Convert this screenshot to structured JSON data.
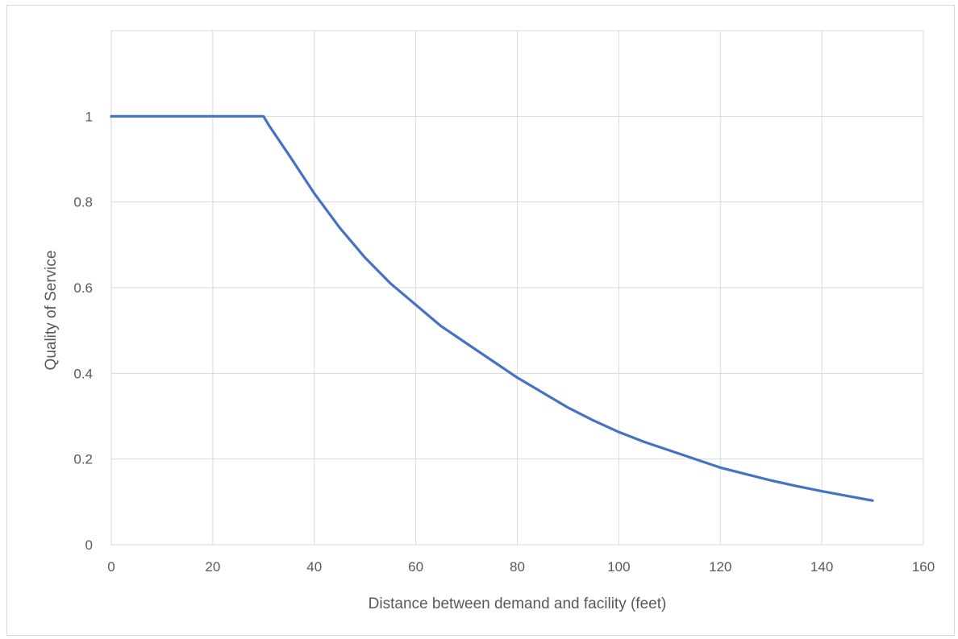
{
  "chart_data": {
    "type": "line",
    "title": "",
    "xlabel": "Distance between demand and facility (feet)",
    "ylabel": "Quality of Service",
    "xlim": [
      0,
      160
    ],
    "ylim": [
      0,
      1.2
    ],
    "x_ticks": [
      0,
      20,
      40,
      60,
      80,
      100,
      120,
      140,
      160
    ],
    "y_ticks": [
      0,
      0.2,
      0.4,
      0.6,
      0.8,
      1
    ],
    "y_tick_labels": [
      "0",
      "0.2",
      "0.4",
      "0.6",
      "0.8",
      "1"
    ],
    "x_tick_labels": [
      "0",
      "20",
      "40",
      "60",
      "80",
      "100",
      "120",
      "140",
      "160"
    ],
    "grid": true,
    "legend": "none",
    "series": [
      {
        "color": "#4472c4",
        "x": [
          0,
          10,
          20,
          25,
          30,
          31,
          35,
          40,
          45,
          50,
          55,
          60,
          65,
          70,
          75,
          80,
          85,
          90,
          95,
          100,
          105,
          110,
          115,
          120,
          125,
          130,
          135,
          140,
          145,
          150
        ],
        "y": [
          1.0,
          1.0,
          1.0,
          1.0,
          1.0,
          0.98,
          0.91,
          0.82,
          0.74,
          0.67,
          0.61,
          0.56,
          0.51,
          0.47,
          0.43,
          0.39,
          0.355,
          0.32,
          0.29,
          0.263,
          0.24,
          0.22,
          0.2,
          0.18,
          0.165,
          0.15,
          0.137,
          0.125,
          0.114,
          0.103
        ]
      }
    ]
  }
}
